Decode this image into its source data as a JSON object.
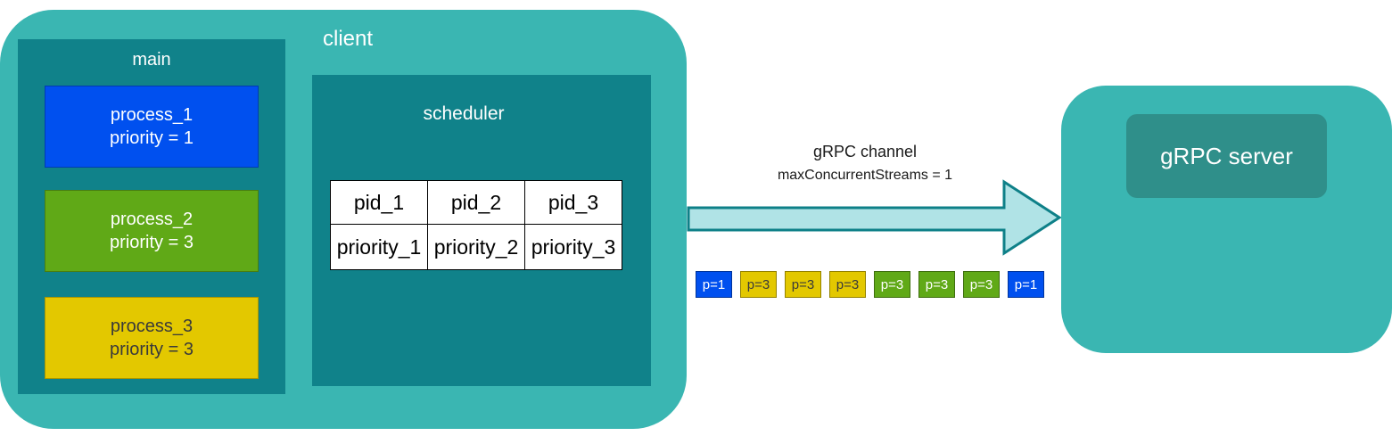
{
  "client": {
    "label": "client"
  },
  "main": {
    "label": "main",
    "processes": [
      {
        "name": "process_1",
        "priority": "priority = 1",
        "color": "#0050ef"
      },
      {
        "name": "process_2",
        "priority": "priority = 3",
        "color": "#60a917"
      },
      {
        "name": "process_3",
        "priority": "priority = 3",
        "color": "#e3c800"
      }
    ]
  },
  "scheduler": {
    "label": "scheduler",
    "table": {
      "pids": [
        "pid_1",
        "pid_2",
        "pid_3"
      ],
      "priorities": [
        "priority_1",
        "priority_2",
        "priority_3"
      ]
    }
  },
  "channel": {
    "label": "gRPC channel",
    "setting": "maxConcurrentStreams = 1",
    "packets": [
      "p=1",
      "p=3",
      "p=3",
      "p=3",
      "p=3",
      "p=3",
      "p=3",
      "p=1"
    ]
  },
  "server": {
    "label": "gRPC server"
  },
  "colors": {
    "container": "#3ab6b2",
    "panel": "#10828a",
    "priority_1": "#0050ef",
    "priority_3_green": "#60a917",
    "priority_3_yellow": "#e3c800",
    "arrow": "#b0e3e6"
  }
}
